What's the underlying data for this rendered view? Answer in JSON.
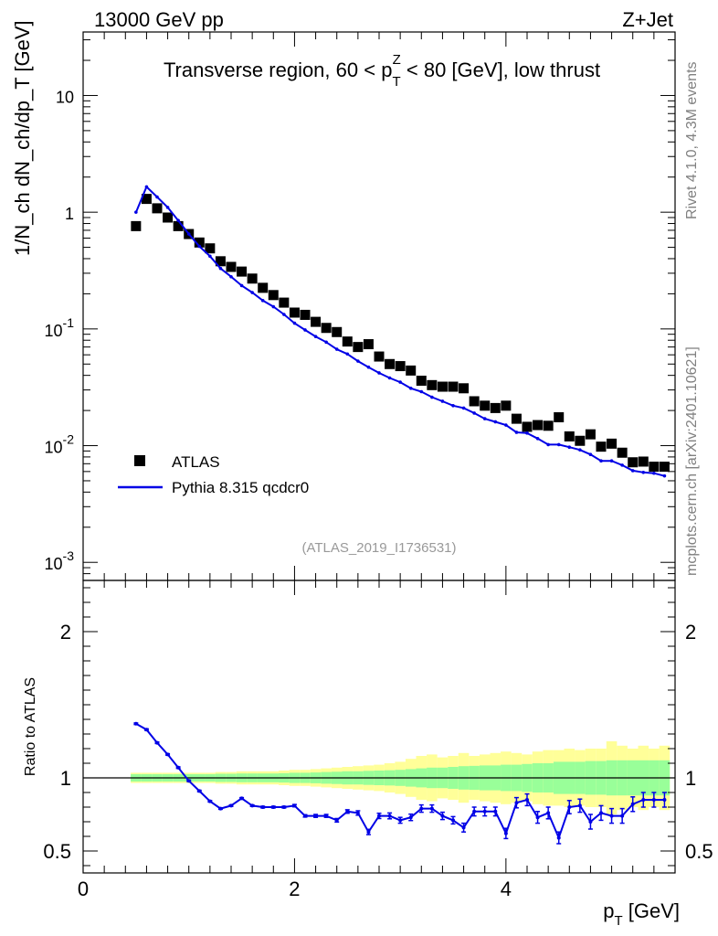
{
  "header": {
    "left": "13000 GeV pp",
    "right": "Z+Jet"
  },
  "side_labels": {
    "rivet": "Rivet 4.1.0,  4.3M events",
    "mcplots": "mcplots.cern.ch [arXiv:2401.10621]"
  },
  "chart_data": [
    {
      "type": "scatter",
      "panel": "main",
      "title_parts": {
        "pre": "Transverse region, 60 < p",
        "sub": "T",
        "sup": "Z",
        "post": " < 80 [GeV], low thrust"
      },
      "ylabel": "1/N_ch dN_ch/dp_T [GeV]",
      "yscale": "log",
      "ylim": [
        0.0007,
        35
      ],
      "xlim": [
        0,
        5.6
      ],
      "y_tick_labels": [
        "10",
        "1",
        "10^-1",
        "10^-2",
        "10^-3"
      ],
      "watermark": "(ATLAS_2019_I1736531)",
      "legend": {
        "position": "lower-left",
        "entries": [
          "ATLAS",
          "Pythia 8.315 qcdcr0"
        ]
      },
      "series": [
        {
          "name": "ATLAS",
          "style": "black-squares",
          "x": [
            0.5,
            0.6,
            0.7,
            0.8,
            0.9,
            1.0,
            1.1,
            1.2,
            1.3,
            1.4,
            1.5,
            1.6,
            1.7,
            1.8,
            1.9,
            2.0,
            2.1,
            2.2,
            2.3,
            2.4,
            2.5,
            2.6,
            2.7,
            2.8,
            2.9,
            3.0,
            3.1,
            3.2,
            3.3,
            3.4,
            3.5,
            3.6,
            3.7,
            3.8,
            3.9,
            4.0,
            4.1,
            4.2,
            4.3,
            4.4,
            4.5,
            4.6,
            4.7,
            4.8,
            4.9,
            5.0,
            5.1,
            5.2,
            5.3,
            5.4,
            5.5
          ],
          "y": [
            0.76,
            1.3,
            1.08,
            0.9,
            0.76,
            0.65,
            0.55,
            0.49,
            0.38,
            0.34,
            0.31,
            0.27,
            0.225,
            0.195,
            0.168,
            0.138,
            0.132,
            0.115,
            0.102,
            0.094,
            0.078,
            0.07,
            0.074,
            0.058,
            0.05,
            0.048,
            0.044,
            0.036,
            0.033,
            0.032,
            0.032,
            0.031,
            0.024,
            0.022,
            0.021,
            0.022,
            0.017,
            0.0145,
            0.015,
            0.0148,
            0.0175,
            0.012,
            0.011,
            0.0125,
            0.0098,
            0.0104,
            0.0087,
            0.0072,
            0.0073,
            0.0066,
            0.0066
          ]
        },
        {
          "name": "Pythia 8.315 qcdcr0",
          "style": "blue-line",
          "color": "#0000e6",
          "x": [
            0.5,
            0.6,
            0.7,
            0.8,
            0.9,
            1.0,
            1.1,
            1.2,
            1.3,
            1.4,
            1.5,
            1.6,
            1.7,
            1.8,
            1.9,
            2.0,
            2.1,
            2.2,
            2.3,
            2.4,
            2.5,
            2.6,
            2.7,
            2.8,
            2.9,
            3.0,
            3.1,
            3.2,
            3.3,
            3.4,
            3.5,
            3.6,
            3.7,
            3.8,
            3.9,
            4.0,
            4.1,
            4.2,
            4.3,
            4.4,
            4.5,
            4.6,
            4.7,
            4.8,
            4.9,
            5.0,
            5.1,
            5.2,
            5.3,
            5.4,
            5.5
          ],
          "y": [
            1.0,
            1.65,
            1.35,
            1.1,
            0.85,
            0.65,
            0.51,
            0.42,
            0.33,
            0.28,
            0.235,
            0.205,
            0.175,
            0.155,
            0.133,
            0.112,
            0.098,
            0.086,
            0.077,
            0.067,
            0.061,
            0.053,
            0.047,
            0.042,
            0.038,
            0.035,
            0.031,
            0.029,
            0.026,
            0.024,
            0.022,
            0.021,
            0.019,
            0.017,
            0.016,
            0.015,
            0.013,
            0.0128,
            0.0115,
            0.0102,
            0.0102,
            0.0097,
            0.0092,
            0.0084,
            0.0074,
            0.0074,
            0.0068,
            0.0061,
            0.0059,
            0.0058,
            0.0055
          ]
        }
      ]
    },
    {
      "type": "line",
      "panel": "ratio",
      "ylabel": "Ratio to ATLAS",
      "xlabel_parts": {
        "pre": "p",
        "sub": "T",
        "post": " [GeV]"
      },
      "ylim": [
        0.35,
        2.35
      ],
      "xlim": [
        0,
        5.6
      ],
      "x_tick_labels": [
        "0",
        "2",
        "4"
      ],
      "y_tick_labels": [
        "0.5",
        "1",
        "2"
      ],
      "reference_line": 1.0,
      "band_inner_halfwidth": [
        0.025,
        0.025,
        0.025,
        0.025,
        0.025,
        0.025,
        0.025,
        0.025,
        0.028,
        0.028,
        0.03,
        0.03,
        0.03,
        0.03,
        0.032,
        0.035,
        0.035,
        0.037,
        0.04,
        0.042,
        0.045,
        0.045,
        0.048,
        0.05,
        0.052,
        0.055,
        0.06,
        0.065,
        0.07,
        0.07,
        0.075,
        0.08,
        0.082,
        0.085,
        0.085,
        0.09,
        0.09,
        0.095,
        0.1,
        0.1,
        0.11,
        0.11,
        0.11,
        0.115,
        0.115,
        0.12,
        0.12,
        0.12,
        0.12,
        0.12,
        0.12
      ],
      "band_outer_halfwidth": [
        0.035,
        0.035,
        0.035,
        0.035,
        0.035,
        0.035,
        0.035,
        0.035,
        0.04,
        0.04,
        0.045,
        0.045,
        0.045,
        0.045,
        0.05,
        0.055,
        0.055,
        0.06,
        0.065,
        0.07,
        0.075,
        0.08,
        0.085,
        0.09,
        0.1,
        0.11,
        0.13,
        0.15,
        0.16,
        0.14,
        0.15,
        0.17,
        0.15,
        0.16,
        0.17,
        0.18,
        0.17,
        0.16,
        0.18,
        0.19,
        0.19,
        0.2,
        0.19,
        0.2,
        0.2,
        0.25,
        0.22,
        0.2,
        0.22,
        0.2,
        0.22
      ],
      "series": [
        {
          "name": "Pythia 8.315 qcdcr0 / ATLAS",
          "color": "#0000e6",
          "x": [
            0.5,
            0.6,
            0.7,
            0.8,
            0.9,
            1.0,
            1.1,
            1.2,
            1.3,
            1.4,
            1.5,
            1.6,
            1.7,
            1.8,
            1.9,
            2.0,
            2.1,
            2.2,
            2.3,
            2.4,
            2.5,
            2.6,
            2.7,
            2.8,
            2.9,
            3.0,
            3.1,
            3.2,
            3.3,
            3.4,
            3.5,
            3.6,
            3.7,
            3.8,
            3.9,
            4.0,
            4.1,
            4.2,
            4.3,
            4.4,
            4.5,
            4.6,
            4.7,
            4.8,
            4.9,
            5.0,
            5.1,
            5.2,
            5.3,
            5.4,
            5.5
          ],
          "y": [
            1.37,
            1.33,
            1.24,
            1.16,
            1.07,
            0.98,
            0.91,
            0.84,
            0.79,
            0.81,
            0.86,
            0.81,
            0.8,
            0.8,
            0.8,
            0.81,
            0.74,
            0.74,
            0.74,
            0.71,
            0.77,
            0.76,
            0.63,
            0.74,
            0.74,
            0.71,
            0.73,
            0.79,
            0.79,
            0.74,
            0.71,
            0.66,
            0.77,
            0.77,
            0.77,
            0.62,
            0.83,
            0.85,
            0.73,
            0.76,
            0.59,
            0.8,
            0.81,
            0.7,
            0.76,
            0.74,
            0.74,
            0.82,
            0.85,
            0.85,
            0.85
          ],
          "yerr": [
            0.005,
            0.005,
            0.005,
            0.005,
            0.005,
            0.005,
            0.005,
            0.005,
            0.005,
            0.005,
            0.005,
            0.005,
            0.006,
            0.006,
            0.006,
            0.008,
            0.008,
            0.01,
            0.01,
            0.012,
            0.012,
            0.015,
            0.018,
            0.018,
            0.02,
            0.02,
            0.022,
            0.025,
            0.025,
            0.025,
            0.025,
            0.03,
            0.03,
            0.03,
            0.03,
            0.035,
            0.035,
            0.04,
            0.04,
            0.04,
            0.04,
            0.045,
            0.045,
            0.05,
            0.05,
            0.05,
            0.05,
            0.05,
            0.05,
            0.05,
            0.05
          ]
        }
      ]
    }
  ]
}
